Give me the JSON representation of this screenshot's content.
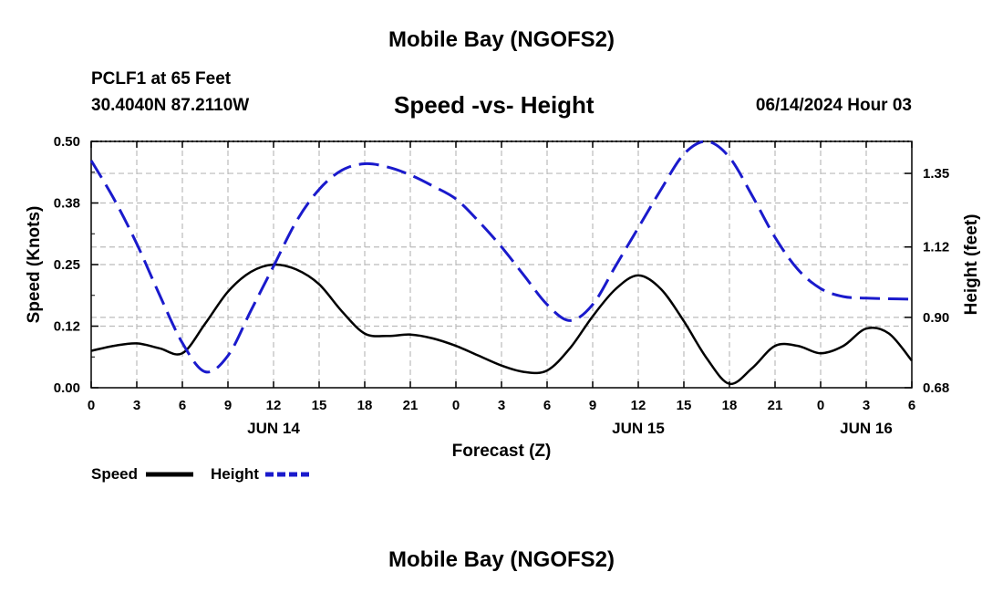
{
  "header": {
    "title": "Mobile Bay (NGOFS2)",
    "station": "PCLF1 at 65 Feet",
    "coords": "30.4040N  87.2110W",
    "chart_title": "Speed -vs- Height",
    "datetime": "06/14/2024 Hour 03"
  },
  "footer": {
    "title": "Mobile Bay (NGOFS2)"
  },
  "legend": {
    "speed_label": "Speed",
    "height_label": "Height"
  },
  "colors": {
    "speed": "#000000",
    "height": "#1a1acc",
    "grid": "#bbbbbb"
  },
  "chart_data": {
    "type": "line",
    "title": "Speed -vs- Height",
    "xlabel": "Forecast (Z)",
    "ylabel_left": "Speed (Knots)",
    "ylabel_right": "Height (feet)",
    "xlim": [
      0,
      54
    ],
    "ylim_left": [
      0,
      0.5
    ],
    "ylim_right": [
      0.68,
      1.45
    ],
    "x_tick_values": [
      0,
      3,
      6,
      9,
      12,
      15,
      18,
      21,
      24,
      27,
      30,
      33,
      36,
      39,
      42,
      45,
      48,
      51,
      54
    ],
    "x_tick_labels": [
      "0",
      "3",
      "6",
      "9",
      "12",
      "15",
      "18",
      "21",
      "0",
      "3",
      "6",
      "9",
      "12",
      "15",
      "18",
      "21",
      "0",
      "3",
      "6"
    ],
    "date_labels": [
      {
        "x": 12,
        "label": "JUN 14"
      },
      {
        "x": 36,
        "label": "JUN 15"
      },
      {
        "x": 51,
        "label": "JUN 16"
      }
    ],
    "y_left_ticks": [
      0.0,
      0.125,
      0.25,
      0.375,
      0.5
    ],
    "y_left_tick_labels": [
      "0.00",
      "0.12",
      "0.25",
      "0.38",
      "0.50"
    ],
    "y_right_ticks": [
      0.68,
      0.9,
      1.12,
      1.35
    ],
    "y_right_tick_labels": [
      "0.68",
      "0.90",
      "1.12",
      "1.35"
    ],
    "grid": true,
    "series": [
      {
        "name": "Speed",
        "axis": "left",
        "style": "solid",
        "x": [
          0,
          1.5,
          3,
          4.5,
          6,
          7.5,
          9,
          10.5,
          12,
          13.5,
          15,
          16.5,
          18,
          19.5,
          21,
          22.5,
          24,
          25.5,
          27,
          28.5,
          30,
          31.5,
          33,
          34.5,
          36,
          37.5,
          39,
          40.5,
          42,
          43.5,
          45,
          46.5,
          48,
          49.5,
          51,
          52.5,
          54
        ],
        "y": [
          0.075,
          0.085,
          0.09,
          0.08,
          0.07,
          0.13,
          0.195,
          0.235,
          0.25,
          0.24,
          0.21,
          0.155,
          0.11,
          0.105,
          0.108,
          0.1,
          0.085,
          0.065,
          0.045,
          0.032,
          0.035,
          0.08,
          0.145,
          0.2,
          0.228,
          0.2,
          0.135,
          0.06,
          0.008,
          0.04,
          0.085,
          0.085,
          0.07,
          0.085,
          0.12,
          0.11,
          0.055
        ]
      },
      {
        "name": "Height",
        "axis": "right",
        "style": "dashed",
        "x": [
          0,
          1.5,
          3,
          4.5,
          6,
          7.5,
          9,
          10.5,
          12,
          13.5,
          15,
          16.5,
          18,
          19.5,
          21,
          22.5,
          24,
          25.5,
          27,
          28.5,
          30,
          31.5,
          33,
          34.5,
          36,
          37.5,
          39,
          40.5,
          42,
          43.5,
          45,
          46.5,
          48,
          49.5,
          51,
          52.5,
          54
        ],
        "y": [
          1.39,
          1.27,
          1.13,
          0.97,
          0.82,
          0.73,
          0.78,
          0.92,
          1.06,
          1.2,
          1.3,
          1.36,
          1.38,
          1.37,
          1.345,
          1.31,
          1.27,
          1.2,
          1.12,
          1.03,
          0.94,
          0.89,
          0.94,
          1.06,
          1.18,
          1.3,
          1.41,
          1.45,
          1.4,
          1.28,
          1.15,
          1.05,
          0.99,
          0.965,
          0.96,
          0.958,
          0.957
        ]
      }
    ]
  }
}
